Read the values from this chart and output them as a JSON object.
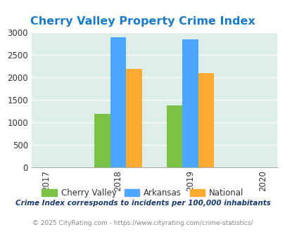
{
  "title": "Cherry Valley Property Crime Index",
  "years": [
    2017,
    2018,
    2019,
    2020
  ],
  "bar_years": [
    2018,
    2019
  ],
  "cherry_valley": [
    1190,
    1370
  ],
  "arkansas": [
    2900,
    2850
  ],
  "national": [
    2190,
    2100
  ],
  "cherry_valley_color": "#7bc143",
  "arkansas_color": "#4da6ff",
  "national_color": "#ffaa33",
  "ylim": [
    0,
    3000
  ],
  "yticks": [
    0,
    500,
    1000,
    1500,
    2000,
    2500,
    3000
  ],
  "bg_color": "#ddeee8",
  "title_color": "#1a7acc",
  "legend_labels": [
    "Cherry Valley",
    "Arkansas",
    "National"
  ],
  "footnote1": "Crime Index corresponds to incidents per 100,000 inhabitants",
  "footnote2": "© 2025 CityRating.com - https://www.cityrating.com/crime-statistics/",
  "bar_width": 0.22
}
